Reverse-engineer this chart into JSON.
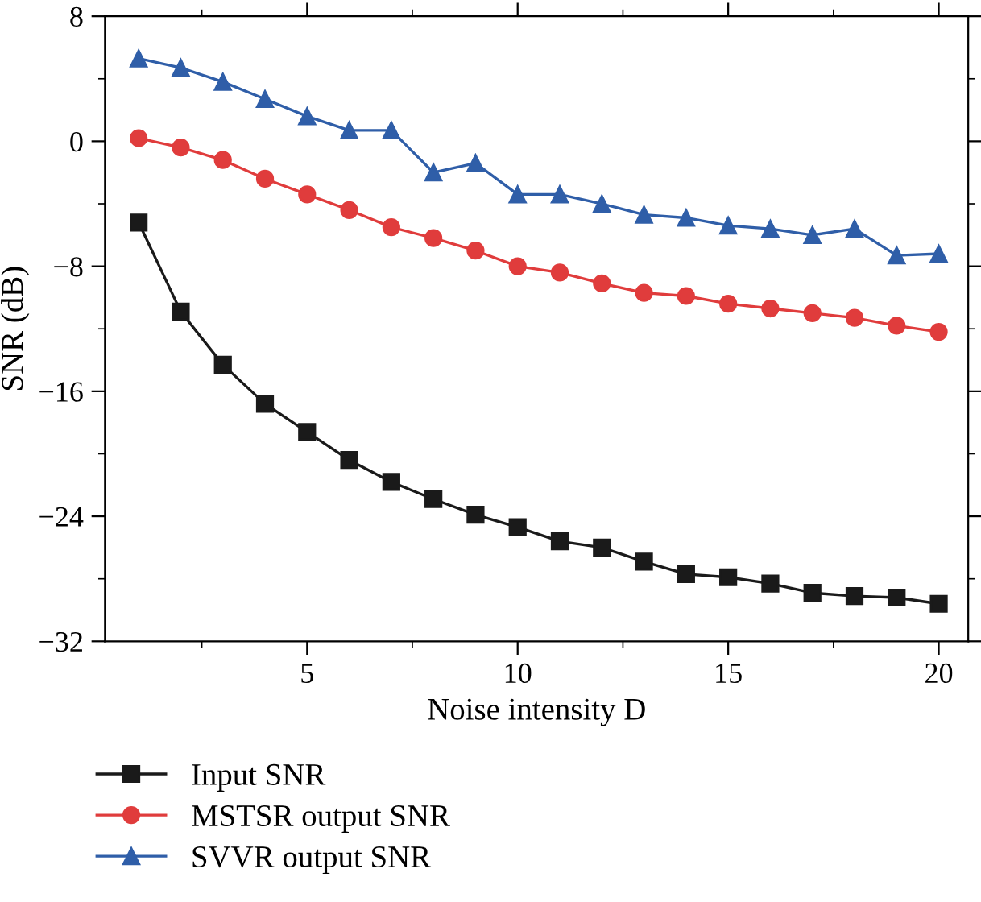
{
  "chart_data": {
    "type": "line",
    "xlabel": "Noise intensity D",
    "ylabel": "SNR (dB)",
    "x": [
      1,
      2,
      3,
      4,
      5,
      6,
      7,
      8,
      9,
      10,
      11,
      12,
      13,
      14,
      15,
      16,
      17,
      18,
      19,
      20
    ],
    "xlim": [
      0.2,
      20.7
    ],
    "xticks": [
      5,
      10,
      15,
      20
    ],
    "ylim": [
      -32,
      8
    ],
    "yticks": [
      {
        "value": -32,
        "label": "−32"
      },
      {
        "value": -24,
        "label": "−24"
      },
      {
        "value": -16,
        "label": "−16"
      },
      {
        "value": -8,
        "label": "−8"
      },
      0,
      8
    ],
    "grid": false,
    "legend": "bottom",
    "line_style": "solid",
    "series": [
      {
        "name": "Input SNR",
        "color": "#1a1a1a",
        "marker": "square",
        "values": [
          -5.2,
          -10.9,
          -14.3,
          -16.8,
          -18.6,
          -20.4,
          -21.8,
          -22.9,
          -23.9,
          -24.7,
          -25.6,
          -26.0,
          -26.9,
          -27.7,
          -27.9,
          -28.3,
          -28.9,
          -29.1,
          -29.2,
          -29.6
        ]
      },
      {
        "name": "MSTSR output SNR",
        "color": "#e03c3c",
        "marker": "circle",
        "values": [
          0.2,
          -0.4,
          -1.2,
          -2.4,
          -3.4,
          -4.4,
          -5.5,
          -6.2,
          -7.0,
          -8.0,
          -8.4,
          -9.1,
          -9.7,
          -9.9,
          -10.4,
          -10.7,
          -11.0,
          -11.3,
          -11.8,
          -12.2
        ]
      },
      {
        "name": "SVVR output SNR",
        "color": "#2f5ea8",
        "marker": "triangle",
        "values": [
          5.3,
          4.7,
          3.8,
          2.7,
          1.6,
          0.7,
          0.7,
          -2.0,
          -1.4,
          -3.4,
          -3.4,
          -4.0,
          -4.7,
          -4.9,
          -5.4,
          -5.6,
          -6.0,
          -5.6,
          -7.3,
          -7.2
        ]
      }
    ]
  }
}
